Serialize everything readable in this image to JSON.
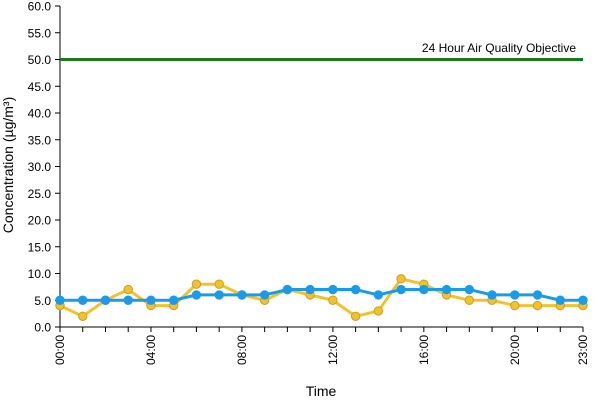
{
  "chart_data": {
    "type": "line",
    "title": "",
    "xlabel": "Time",
    "ylabel": "Concentration (µg/m³)",
    "ylim": [
      0,
      60
    ],
    "yticks": [
      "0.0",
      "5.0",
      "10.0",
      "15.0",
      "20.0",
      "25.0",
      "30.0",
      "35.0",
      "40.0",
      "45.0",
      "50.0",
      "55.0",
      "60.0"
    ],
    "xlim": [
      0,
      23
    ],
    "xticks": [
      {
        "x": 0,
        "label": "00:00"
      },
      {
        "x": 4,
        "label": "04:00"
      },
      {
        "x": 8,
        "label": "08:00"
      },
      {
        "x": 12,
        "label": "12:00"
      },
      {
        "x": 16,
        "label": "16:00"
      },
      {
        "x": 20,
        "label": "20:00"
      },
      {
        "x": 23,
        "label": "23:00"
      }
    ],
    "grid": false,
    "objective": {
      "value": 50,
      "label": "24 Hour Air Quality Objective",
      "color": "#1a7a1a"
    },
    "series": [
      {
        "color": "#f2c12e",
        "marker_edge": "#c9a020",
        "values": [
          4,
          2,
          5,
          7,
          4,
          4,
          8,
          8,
          6,
          5,
          7,
          6,
          5,
          2,
          3,
          9,
          8,
          6,
          5,
          5,
          4,
          4,
          4,
          4
        ]
      },
      {
        "color": "#1a9be8",
        "marker_edge": "#1a9be8",
        "values": [
          5,
          5,
          5,
          5,
          5,
          5,
          6,
          6,
          6,
          6,
          7,
          7,
          7,
          7,
          6,
          7,
          7,
          7,
          7,
          6,
          6,
          6,
          5,
          5
        ]
      }
    ]
  }
}
